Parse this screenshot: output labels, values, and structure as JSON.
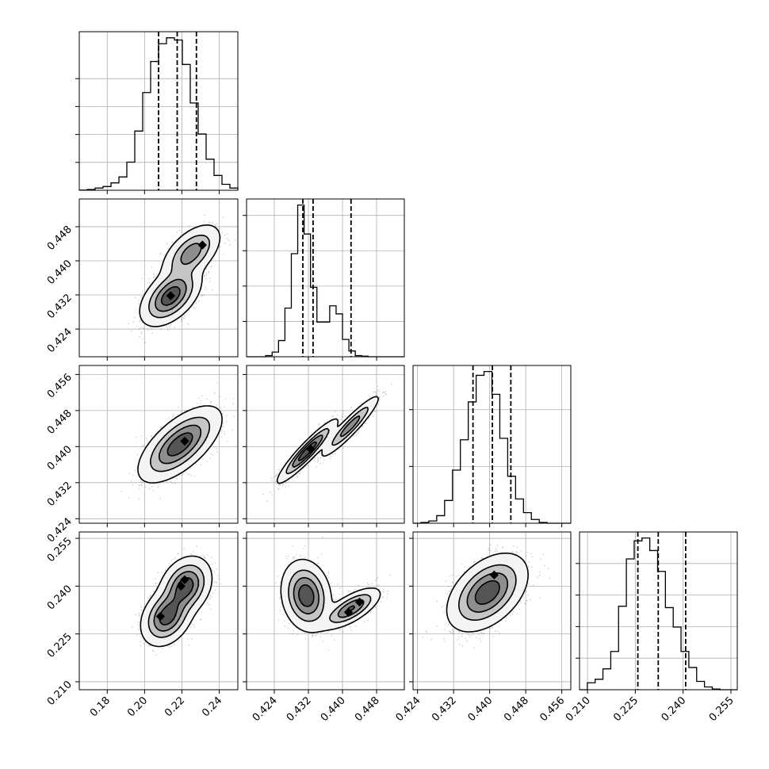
{
  "chart_data": {
    "type": "corner",
    "parameters": [
      {
        "range": [
          0.165,
          0.25
        ],
        "ticks": [
          0.18,
          0.2,
          0.22,
          0.24
        ],
        "tick_labels": [
          "0.18",
          "0.20",
          "0.22",
          "0.24"
        ],
        "quantiles": [
          0.2075,
          0.2175,
          0.2278
        ],
        "hist_bins": [
          0.165,
          0.16925,
          0.1735,
          0.17775,
          0.182,
          0.18625,
          0.1905,
          0.19475,
          0.199,
          0.20325,
          0.2075,
          0.21175,
          0.216,
          0.22025,
          0.2245,
          0.22875,
          0.233,
          0.23725,
          0.2415,
          0.24575,
          0.25
        ],
        "hist_counts": [
          0.3,
          1,
          3,
          5,
          10,
          18,
          38,
          80,
          132,
          174,
          198,
          206,
          203,
          170,
          118,
          76,
          42,
          20,
          8,
          3
        ],
        "hist_tick_values": [
          0.22,
          0.44,
          0.66,
          0.88
        ]
      },
      {
        "range": [
          0.4175,
          0.4545
        ],
        "ticks": [
          0.424,
          0.432,
          0.44,
          0.448
        ],
        "tick_labels": [
          "0.424",
          "0.432",
          "0.440",
          "0.448"
        ],
        "quantiles": [
          0.4307,
          0.4331,
          0.442
        ],
        "hist_bins": [
          0.4175,
          0.419,
          0.4205,
          0.422,
          0.4235,
          0.425,
          0.4265,
          0.428,
          0.4295,
          0.431,
          0.4325,
          0.434,
          0.4355,
          0.437,
          0.4385,
          0.44,
          0.4415,
          0.443,
          0.4445,
          0.446,
          0.4475,
          0.449,
          0.4505,
          0.452,
          0.4535,
          0.4545
        ],
        "hist_counts": [
          0,
          0,
          0,
          2,
          8,
          28,
          84,
          178,
          262,
          212,
          120,
          60,
          60,
          88,
          74,
          30,
          10,
          2,
          1,
          0,
          0,
          0,
          0,
          0,
          0
        ],
        "hist_tick_values": [
          0.28,
          0.56,
          0.84,
          1.12
        ]
      },
      {
        "range": [
          0.423,
          0.458
        ],
        "ticks": [
          0.424,
          0.432,
          0.44,
          0.448,
          0.456
        ],
        "tick_labels": [
          "0.424",
          "0.432",
          "0.440",
          "0.448",
          "0.456"
        ],
        "quantiles": [
          0.4363,
          0.4406,
          0.4447
        ],
        "hist_bins": [
          0.423,
          0.42475,
          0.4265,
          0.42825,
          0.43,
          0.43175,
          0.4335,
          0.43525,
          0.437,
          0.43875,
          0.4405,
          0.44225,
          0.444,
          0.44575,
          0.4475,
          0.44925,
          0.451,
          0.45275,
          0.4545,
          0.45625,
          0.458
        ],
        "hist_counts": [
          0,
          1,
          3,
          10,
          30,
          70,
          110,
          160,
          195,
          200,
          170,
          112,
          62,
          32,
          14,
          5,
          1,
          0,
          0,
          0
        ],
        "hist_tick_values": [
          0.45,
          0.9
        ]
      },
      {
        "range": [
          0.2075,
          0.257
        ],
        "ticks": [
          0.21,
          0.225,
          0.24,
          0.255
        ],
        "tick_labels": [
          "0.210",
          "0.225",
          "0.240",
          "0.255"
        ],
        "quantiles": [
          0.2258,
          0.2322,
          0.2408
        ],
        "hist_bins": [
          0.2075,
          0.20995,
          0.2124,
          0.21485,
          0.2173,
          0.21975,
          0.2222,
          0.22465,
          0.2271,
          0.22955,
          0.232,
          0.23445,
          0.2369,
          0.23935,
          0.2418,
          0.24425,
          0.2467,
          0.24915,
          0.2516,
          0.25405,
          0.257
        ],
        "hist_counts": [
          0,
          10,
          15,
          30,
          55,
          120,
          188,
          214,
          218,
          200,
          170,
          118,
          90,
          55,
          32,
          12,
          4,
          1,
          0
        ],
        "hist_tick_values": [
          0.25,
          0.5,
          0.75,
          1.0
        ]
      }
    ],
    "pairs": [
      {
        "col": 0,
        "row": 1,
        "modes": [
          [
            0.214,
            0.4317,
            0.007,
            0.003,
            0.5,
            0.6
          ],
          [
            0.225,
            0.4418,
            0.007,
            0.003,
            0.55,
            0.4
          ]
        ],
        "peaks": [
          [
            0.214,
            0.4318
          ],
          [
            0.231,
            0.4437
          ]
        ]
      },
      {
        "col": 0,
        "row": 2,
        "modes": [
          [
            0.219,
            0.4405,
            0.0095,
            0.0036,
            0.65,
            1.0
          ]
        ],
        "peaks": [
          [
            0.2215,
            0.4412
          ]
        ]
      },
      {
        "col": 1,
        "row": 2,
        "modes": [
          [
            0.4318,
            0.439,
            0.003,
            0.003,
            0.93,
            0.6
          ],
          [
            0.4418,
            0.4445,
            0.003,
            0.003,
            0.93,
            0.4
          ]
        ],
        "peaks": [
          [
            0.4325,
            0.4395
          ]
        ]
      },
      {
        "col": 0,
        "row": 3,
        "modes": [
          [
            0.212,
            0.2305,
            0.006,
            0.004,
            0.3,
            0.5
          ],
          [
            0.222,
            0.24,
            0.006,
            0.004,
            0.25,
            0.5
          ]
        ],
        "peaks": [
          [
            0.2085,
            0.2305
          ],
          [
            0.2195,
            0.24
          ],
          [
            0.2215,
            0.242
          ]
        ]
      },
      {
        "col": 1,
        "row": 3,
        "modes": [
          [
            0.4315,
            0.237,
            0.0025,
            0.0048,
            -0.15,
            0.55
          ],
          [
            0.442,
            0.233,
            0.003,
            0.0028,
            0.7,
            0.45
          ]
        ],
        "peaks": [
          [
            0.4414,
            0.2318
          ],
          [
            0.444,
            0.235
          ]
        ]
      },
      {
        "col": 2,
        "row": 3,
        "modes": [
          [
            0.4395,
            0.238,
            0.0038,
            0.0052,
            0.45,
            1.0
          ]
        ],
        "peaks": [
          [
            0.441,
            0.2435
          ]
        ]
      }
    ]
  }
}
